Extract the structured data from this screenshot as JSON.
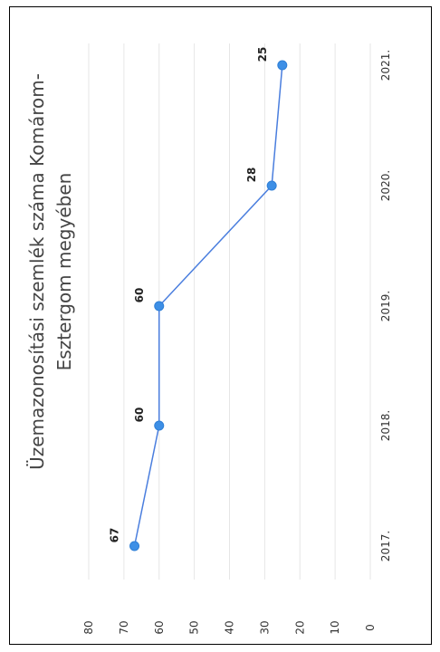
{
  "chart_data": {
    "type": "line",
    "orientation": "rotated 90° counter-clockwise",
    "title_lines": [
      "Üzemazonosítási szemlék száma Komárom-",
      "Esztergom megyében"
    ],
    "categories": [
      "2017.",
      "2018.",
      "2019.",
      "2020.",
      "2021."
    ],
    "values": [
      67,
      60,
      60,
      28,
      25
    ],
    "data_labels": [
      "67",
      "60",
      "60",
      "28",
      "25"
    ],
    "ylim": [
      0,
      80
    ],
    "yticks": [
      "0",
      "10",
      "20",
      "30",
      "40",
      "50",
      "60",
      "70",
      "80"
    ],
    "grid": true,
    "legend": "none",
    "colors": {
      "line": "#4a7ede",
      "marker": "#3d8fe6",
      "grid": "#e6e6e6"
    }
  }
}
